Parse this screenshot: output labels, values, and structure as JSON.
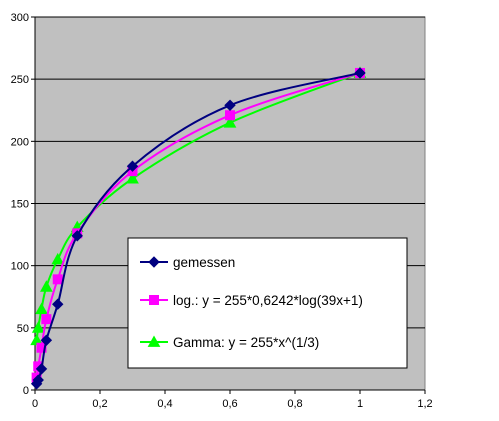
{
  "chart_data": {
    "type": "line",
    "title": "",
    "xlabel": "",
    "ylabel": "",
    "xlim": [
      0,
      1.2
    ],
    "ylim": [
      0,
      300
    ],
    "x_ticks": [
      "0",
      "0,2",
      "0,4",
      "0,6",
      "0,8",
      "1",
      "1,2"
    ],
    "y_ticks": [
      "0",
      "50",
      "100",
      "150",
      "200",
      "250",
      "300"
    ],
    "grid": "horizontal",
    "plot_background": "#c0c0c0",
    "legend_position": "lower-right",
    "series": [
      {
        "name": "gemessen",
        "color": "#000080",
        "marker": "diamond",
        "x": [
          0.005,
          0.01,
          0.02,
          0.035,
          0.07,
          0.13,
          0.3,
          0.6,
          1.0
        ],
        "y": [
          5,
          8,
          17,
          40,
          69,
          124,
          180,
          229,
          255
        ]
      },
      {
        "name": "log.:   y = 255*0,6242*log(39x+1)",
        "color": "#ff00ff",
        "marker": "square",
        "x": [
          0.005,
          0.01,
          0.02,
          0.035,
          0.07,
          0.13,
          0.3,
          0.6,
          1.0
        ],
        "y": [
          10,
          19,
          34,
          57,
          89,
          126,
          176,
          221,
          255
        ]
      },
      {
        "name": "Gamma:  y = 255*x^(1/3)",
        "color": "#00ff00",
        "marker": "triangle",
        "x": [
          0.005,
          0.01,
          0.02,
          0.035,
          0.07,
          0.13,
          0.3,
          0.6,
          1.0
        ],
        "y": [
          40,
          50,
          65,
          83,
          105,
          131,
          170,
          215,
          255
        ]
      }
    ]
  }
}
